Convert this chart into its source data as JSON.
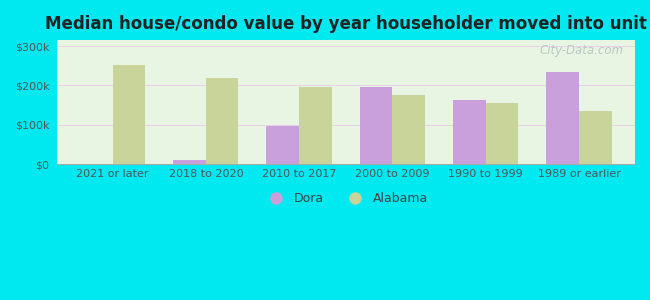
{
  "title": "Median house/condo value by year householder moved into unit",
  "categories": [
    "2021 or later",
    "2018 to 2020",
    "2010 to 2017",
    "2000 to 2009",
    "1990 to 1999",
    "1989 or earlier"
  ],
  "dora_values": [
    0,
    10000,
    97000,
    197000,
    163000,
    233000
  ],
  "dora_none": [
    true,
    false,
    false,
    false,
    false,
    false
  ],
  "alabama_values": [
    253000,
    218000,
    197000,
    175000,
    155000,
    135000
  ],
  "dora_color": "#c9a0dc",
  "alabama_color": "#c8d49a",
  "background_color": "#00e8f0",
  "plot_bg": "#e8f5e2",
  "ylabel_ticks": [
    "$0",
    "$100k",
    "$200k",
    "$300k"
  ],
  "ytick_values": [
    0,
    100000,
    200000,
    300000
  ],
  "ylim": [
    0,
    315000
  ],
  "watermark": "City-Data.com",
  "legend_dora": "Dora",
  "legend_alabama": "Alabama",
  "title_fontsize": 12,
  "tick_fontsize": 8,
  "legend_fontsize": 9
}
